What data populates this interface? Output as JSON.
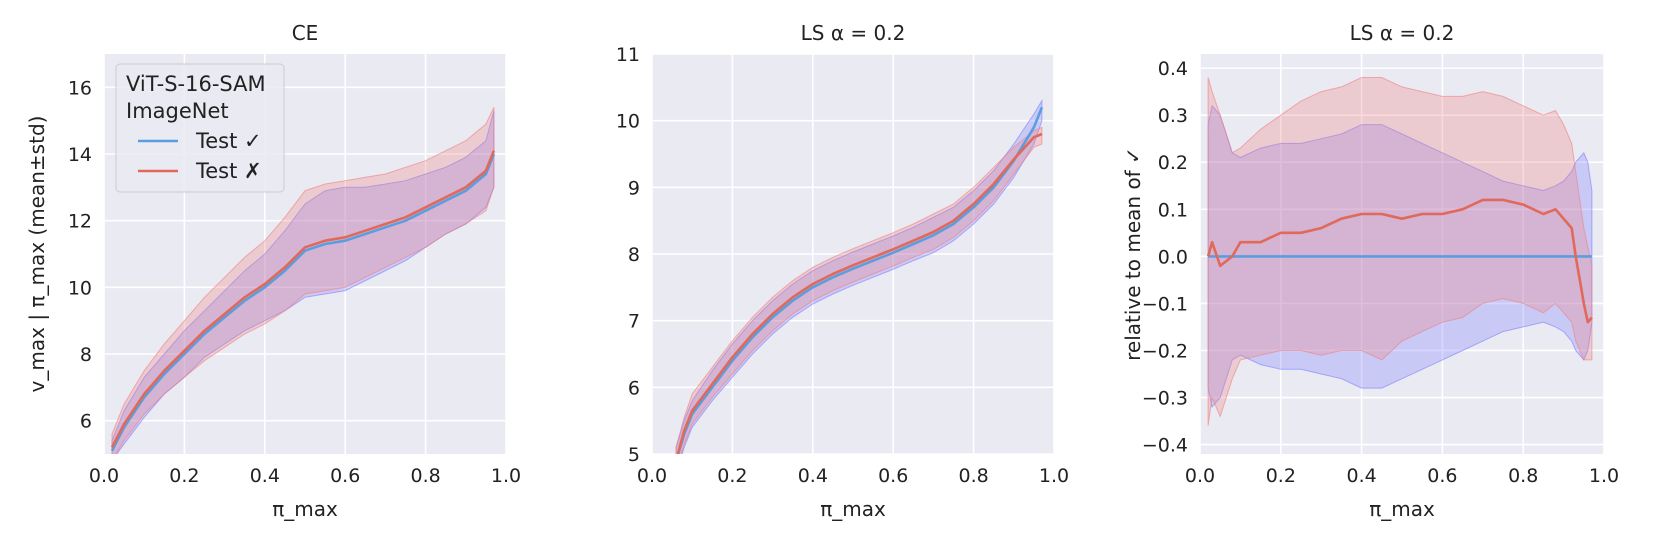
{
  "colors": {
    "axes_bg": "#eaeaf2",
    "grid": "#ffffff",
    "correct_line": "#5a9ee0",
    "wrong_line": "#e0695a",
    "correct_band": "#7f7fff",
    "wrong_band": "#f08080"
  },
  "legend": {
    "title_line1": "ViT-S-16-SAM",
    "title_line2": "ImageNet",
    "entries": [
      "Test ✓",
      "Test ✗"
    ],
    "placement": "upper-left of first panel"
  },
  "chart_data": [
    {
      "type": "line",
      "title": "CE",
      "xlabel": "π_max",
      "ylabel": "v_max | π_max   (mean±std)",
      "xlim": [
        0.0,
        1.0
      ],
      "ylim": [
        5.0,
        17.0
      ],
      "xticks": [
        "0.0",
        "0.2",
        "0.4",
        "0.6",
        "0.8",
        "1.0"
      ],
      "yticks": [
        "6",
        "8",
        "10",
        "12",
        "14",
        "16"
      ],
      "ytick_values": [
        6,
        8,
        10,
        12,
        14,
        16
      ],
      "grid": true,
      "x": [
        0.02,
        0.05,
        0.1,
        0.15,
        0.2,
        0.25,
        0.3,
        0.35,
        0.4,
        0.45,
        0.5,
        0.55,
        0.6,
        0.65,
        0.7,
        0.75,
        0.8,
        0.85,
        0.9,
        0.95,
        0.97
      ],
      "series": [
        {
          "name": "Test ✓",
          "mean": [
            5.1,
            5.8,
            6.7,
            7.4,
            8.0,
            8.6,
            9.1,
            9.6,
            10.0,
            10.5,
            11.1,
            11.3,
            11.4,
            11.6,
            11.8,
            12.0,
            12.3,
            12.6,
            12.9,
            13.4,
            14.0
          ],
          "upper": [
            5.4,
            6.3,
            7.3,
            8.0,
            8.7,
            9.3,
            9.9,
            10.5,
            11.0,
            11.7,
            12.5,
            12.9,
            13.0,
            13.0,
            13.1,
            13.2,
            13.4,
            13.6,
            13.9,
            14.4,
            15.3
          ],
          "lower": [
            4.8,
            5.3,
            6.1,
            6.8,
            7.3,
            7.9,
            8.3,
            8.7,
            9.0,
            9.3,
            9.7,
            9.8,
            9.9,
            10.2,
            10.5,
            10.8,
            11.2,
            11.6,
            11.9,
            12.4,
            13.0
          ]
        },
        {
          "name": "Test ✗",
          "mean": [
            5.2,
            5.9,
            6.8,
            7.5,
            8.1,
            8.7,
            9.2,
            9.7,
            10.1,
            10.6,
            11.2,
            11.4,
            11.5,
            11.7,
            11.9,
            12.1,
            12.4,
            12.7,
            13.0,
            13.5,
            14.1
          ],
          "upper": [
            5.6,
            6.5,
            7.5,
            8.3,
            9.0,
            9.7,
            10.3,
            10.9,
            11.4,
            12.1,
            12.9,
            13.1,
            13.2,
            13.3,
            13.4,
            13.6,
            13.8,
            14.1,
            14.4,
            14.9,
            15.4
          ],
          "lower": [
            4.8,
            5.4,
            6.2,
            6.8,
            7.3,
            7.8,
            8.2,
            8.6,
            8.9,
            9.3,
            9.8,
            9.9,
            10.0,
            10.3,
            10.6,
            10.9,
            11.2,
            11.6,
            11.9,
            12.3,
            13.0
          ]
        }
      ]
    },
    {
      "type": "line",
      "title": "LS α = 0.2",
      "xlabel": "π_max",
      "ylabel": "",
      "xlim": [
        0.0,
        1.0
      ],
      "ylim": [
        5.0,
        11.0
      ],
      "xticks": [
        "0.0",
        "0.2",
        "0.4",
        "0.6",
        "0.8",
        "1.0"
      ],
      "yticks": [
        "5",
        "6",
        "7",
        "8",
        "9",
        "10",
        "11"
      ],
      "ytick_values": [
        5,
        6,
        7,
        8,
        9,
        10,
        11
      ],
      "grid": true,
      "x": [
        0.06,
        0.08,
        0.1,
        0.15,
        0.2,
        0.25,
        0.3,
        0.35,
        0.4,
        0.45,
        0.5,
        0.55,
        0.6,
        0.65,
        0.7,
        0.75,
        0.8,
        0.85,
        0.9,
        0.95,
        0.97
      ],
      "series": [
        {
          "name": "Test ✓",
          "mean": [
            4.9,
            5.3,
            5.6,
            6.0,
            6.4,
            6.75,
            7.05,
            7.3,
            7.5,
            7.65,
            7.78,
            7.9,
            8.02,
            8.15,
            8.28,
            8.45,
            8.7,
            9.0,
            9.4,
            9.9,
            10.2
          ],
          "upper": [
            5.1,
            5.5,
            5.8,
            6.25,
            6.65,
            7.0,
            7.3,
            7.55,
            7.75,
            7.9,
            8.03,
            8.15,
            8.27,
            8.4,
            8.55,
            8.7,
            8.95,
            9.25,
            9.65,
            10.1,
            10.3
          ],
          "lower": [
            4.7,
            5.1,
            5.4,
            5.8,
            6.15,
            6.5,
            6.8,
            7.05,
            7.25,
            7.4,
            7.53,
            7.65,
            7.77,
            7.9,
            8.02,
            8.2,
            8.45,
            8.75,
            9.15,
            9.65,
            10.0
          ]
        },
        {
          "name": "Test ✗",
          "mean": [
            4.9,
            5.35,
            5.65,
            6.05,
            6.45,
            6.8,
            7.1,
            7.35,
            7.55,
            7.7,
            7.83,
            7.95,
            8.07,
            8.2,
            8.33,
            8.5,
            8.75,
            9.05,
            9.42,
            9.75,
            9.8
          ],
          "upper": [
            5.1,
            5.55,
            5.9,
            6.3,
            6.7,
            7.05,
            7.35,
            7.6,
            7.8,
            7.95,
            8.08,
            8.2,
            8.32,
            8.45,
            8.6,
            8.75,
            9.0,
            9.3,
            9.6,
            9.85,
            9.9
          ],
          "lower": [
            4.7,
            5.15,
            5.45,
            5.85,
            6.2,
            6.55,
            6.85,
            7.1,
            7.3,
            7.45,
            7.58,
            7.7,
            7.82,
            7.95,
            8.07,
            8.25,
            8.5,
            8.8,
            9.2,
            9.6,
            9.65
          ]
        }
      ]
    },
    {
      "type": "line",
      "title": "LS α = 0.2",
      "xlabel": "π_max",
      "ylabel": "relative to mean of ✓",
      "xlim": [
        0.0,
        1.0
      ],
      "ylim": [
        -0.42,
        0.43
      ],
      "xticks": [
        "0.0",
        "0.2",
        "0.4",
        "0.6",
        "0.8",
        "1.0"
      ],
      "yticks": [
        "−0.4",
        "−0.3",
        "−0.2",
        "−0.1",
        "0.0",
        "0.1",
        "0.2",
        "0.3",
        "0.4"
      ],
      "ytick_values": [
        -0.4,
        -0.3,
        -0.2,
        -0.1,
        0.0,
        0.1,
        0.2,
        0.3,
        0.4
      ],
      "grid": true,
      "x": [
        0.02,
        0.03,
        0.05,
        0.08,
        0.1,
        0.15,
        0.2,
        0.25,
        0.3,
        0.35,
        0.4,
        0.45,
        0.5,
        0.55,
        0.6,
        0.65,
        0.7,
        0.75,
        0.8,
        0.85,
        0.88,
        0.9,
        0.92,
        0.93,
        0.94,
        0.95,
        0.96,
        0.97
      ],
      "series": [
        {
          "name": "Test ✓",
          "mean": [
            0,
            0,
            0,
            0,
            0,
            0,
            0,
            0,
            0,
            0,
            0,
            0,
            0,
            0,
            0,
            0,
            0,
            0,
            0,
            0,
            0,
            0,
            0,
            0,
            0,
            0,
            0,
            0
          ],
          "upper": [
            0.28,
            0.32,
            0.3,
            0.22,
            0.21,
            0.23,
            0.24,
            0.24,
            0.25,
            0.26,
            0.28,
            0.28,
            0.26,
            0.24,
            0.22,
            0.2,
            0.18,
            0.16,
            0.15,
            0.14,
            0.15,
            0.16,
            0.18,
            0.2,
            0.21,
            0.22,
            0.2,
            0.14
          ],
          "lower": [
            -0.28,
            -0.32,
            -0.3,
            -0.22,
            -0.21,
            -0.23,
            -0.24,
            -0.24,
            -0.25,
            -0.26,
            -0.28,
            -0.28,
            -0.26,
            -0.24,
            -0.22,
            -0.2,
            -0.18,
            -0.16,
            -0.15,
            -0.14,
            -0.15,
            -0.16,
            -0.18,
            -0.2,
            -0.21,
            -0.22,
            -0.2,
            -0.14
          ]
        },
        {
          "name": "Test ✗",
          "mean": [
            0.0,
            0.03,
            -0.02,
            0.0,
            0.03,
            0.03,
            0.05,
            0.05,
            0.06,
            0.08,
            0.09,
            0.09,
            0.08,
            0.09,
            0.09,
            0.1,
            0.12,
            0.12,
            0.11,
            0.09,
            0.1,
            0.08,
            0.06,
            0.0,
            -0.05,
            -0.1,
            -0.14,
            -0.13
          ],
          "upper": [
            0.38,
            0.35,
            0.3,
            0.22,
            0.23,
            0.27,
            0.3,
            0.33,
            0.35,
            0.36,
            0.38,
            0.38,
            0.36,
            0.35,
            0.34,
            0.34,
            0.35,
            0.34,
            0.32,
            0.3,
            0.31,
            0.28,
            0.24,
            0.18,
            0.12,
            0.06,
            0.02,
            -0.02
          ],
          "lower": [
            -0.36,
            -0.3,
            -0.34,
            -0.26,
            -0.22,
            -0.21,
            -0.2,
            -0.2,
            -0.21,
            -0.2,
            -0.2,
            -0.22,
            -0.18,
            -0.16,
            -0.14,
            -0.13,
            -0.1,
            -0.09,
            -0.1,
            -0.12,
            -0.1,
            -0.12,
            -0.14,
            -0.18,
            -0.2,
            -0.22,
            -0.22,
            -0.22
          ]
        }
      ]
    }
  ]
}
